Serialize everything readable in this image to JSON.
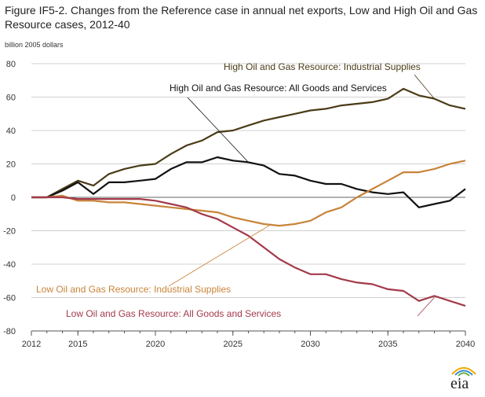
{
  "figure": {
    "title": "Figure IF5-2. Changes from the Reference case in annual net exports, Low and High Oil and Gas Resource cases, 2012-40",
    "unit_label": "billion 2005 dollars",
    "logo_text": "eia"
  },
  "chart_data": {
    "type": "line",
    "title": "Figure IF5-2. Changes from the Reference case in annual net exports, Low and High Oil and Gas Resource cases, 2012-40",
    "xlabel": "",
    "ylabel": "billion 2005 dollars",
    "xlim": [
      2012,
      2040
    ],
    "ylim": [
      -80,
      80
    ],
    "x_ticks": [
      2012,
      2015,
      2020,
      2025,
      2030,
      2035,
      2040
    ],
    "y_ticks": [
      -80,
      -60,
      -40,
      -20,
      0,
      20,
      40,
      60,
      80
    ],
    "grid": "horizontal",
    "x": [
      2012,
      2013,
      2014,
      2015,
      2016,
      2017,
      2018,
      2019,
      2020,
      2021,
      2022,
      2023,
      2024,
      2025,
      2026,
      2027,
      2028,
      2029,
      2030,
      2031,
      2032,
      2033,
      2034,
      2035,
      2036,
      2037,
      2038,
      2039,
      2040
    ],
    "series": [
      {
        "name": "High Oil and Gas Resource: Industrial Supplies",
        "color": "#4b3c17",
        "values": [
          0,
          0,
          5,
          10,
          7,
          14,
          17,
          19,
          20,
          26,
          31,
          34,
          39,
          40,
          43,
          46,
          48,
          50,
          52,
          53,
          55,
          56,
          57,
          59,
          65,
          61,
          59,
          55,
          53
        ]
      },
      {
        "name": "High Oil and Gas Resource: All Goods and Services",
        "color": "#111111",
        "values": [
          0,
          0,
          4,
          9,
          2,
          9,
          9,
          10,
          11,
          17,
          21,
          21,
          24,
          22,
          21,
          19,
          14,
          13,
          10,
          8,
          8,
          5,
          3,
          2,
          3,
          -6,
          -4,
          -2,
          5
        ]
      },
      {
        "name": "Low Oil and Gas Resource: Industrial Supplies",
        "color": "#c8843a",
        "values": [
          0,
          0,
          1,
          -2,
          -2,
          -3,
          -3,
          -4,
          -5,
          -6,
          -7,
          -8,
          -9,
          -12,
          -14,
          -16,
          -17,
          -16,
          -14,
          -9,
          -6,
          0,
          5,
          10,
          15,
          15,
          17,
          20,
          22
        ]
      },
      {
        "name": "Low Oil and Gas Resource: All Goods and Services",
        "color": "#a33a4a",
        "values": [
          0,
          0,
          0,
          -1,
          -1,
          -1,
          -1,
          -1,
          -2,
          -4,
          -6,
          -10,
          -13,
          -18,
          -23,
          -30,
          -37,
          -42,
          -46,
          -46,
          -49,
          -51,
          -52,
          -55,
          -56,
          -62,
          -59,
          -62,
          -65
        ]
      }
    ],
    "annotations": [
      {
        "series": 0,
        "text": "High Oil and Gas Resource: Industrial Supplies"
      },
      {
        "series": 1,
        "text": "High Oil and Gas Resource: All Goods and Services"
      },
      {
        "series": 2,
        "text": "Low Oil and Gas Resource: Industrial Supplies"
      },
      {
        "series": 3,
        "text": "Low Oil and Gas Resource: All Goods and Services"
      }
    ]
  }
}
